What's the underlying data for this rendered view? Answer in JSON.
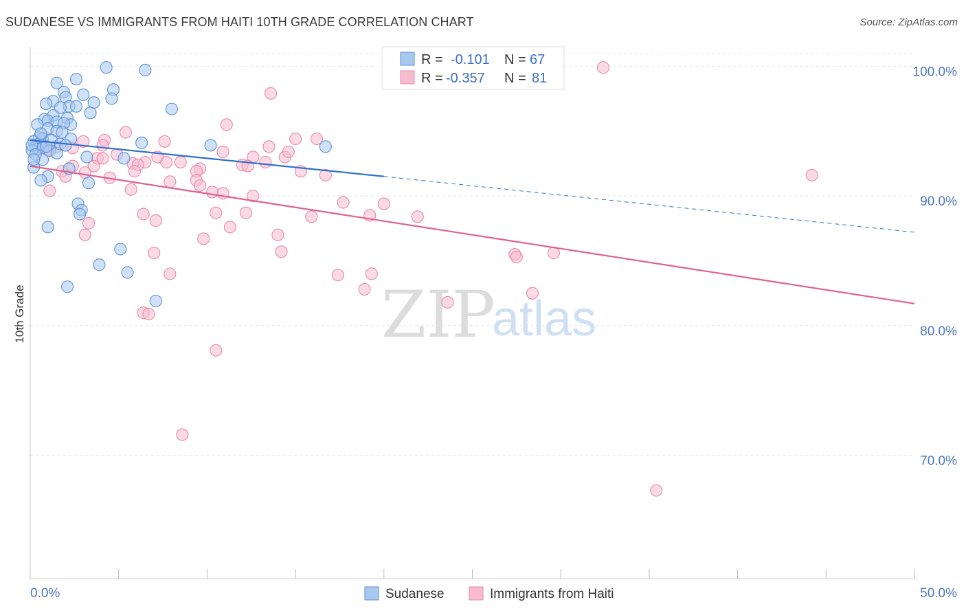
{
  "title": "SUDANESE VS IMMIGRANTS FROM HAITI 10TH GRADE CORRELATION CHART",
  "source": "Source: ZipAtlas.com",
  "watermark": {
    "zip": "ZIP",
    "atlas": "atlas"
  },
  "legend_top": {
    "rows": [
      {
        "r_label": "R =",
        "r_value": "-0.101",
        "n_label": "N =",
        "n_value": "67"
      },
      {
        "r_label": "R =",
        "r_value": "-0.357",
        "n_label": "N =",
        "n_value": "81"
      }
    ]
  },
  "legend_bottom": {
    "items": [
      "Sudanese",
      "Immigrants from Haiti"
    ]
  },
  "colors": {
    "blue_fill": "#a8c8f0",
    "blue_stroke": "#5b8fd6",
    "blue_line": "#2f6fd0",
    "pink_fill": "#f7bcd0",
    "pink_stroke": "#e889a8",
    "pink_line": "#e0608e",
    "tick_text": "#4a78c2"
  },
  "chart_data": {
    "type": "scatter",
    "title": "SUDANESE VS IMMIGRANTS FROM HAITI 10TH GRADE CORRELATION CHART",
    "xlabel": "",
    "ylabel": "10th Grade",
    "xlim": [
      0,
      50
    ],
    "ylim": [
      60.5,
      101.5
    ],
    "x_tick_labels": [
      "0.0%",
      "50.0%"
    ],
    "y_ticks": [
      {
        "value": 100,
        "label": "100.0%"
      },
      {
        "value": 90,
        "label": "90.0%"
      },
      {
        "value": 80,
        "label": "80.0%"
      },
      {
        "value": 70,
        "label": "70.0%"
      }
    ],
    "grid": true,
    "series": [
      {
        "name": "Sudanese",
        "r": -0.101,
        "n": 67,
        "trend": {
          "x0": 0,
          "y0": 94.3,
          "x_solid_end": 20,
          "y_solid_end": 91.5,
          "x1": 50,
          "y1": 87.2
        },
        "points": [
          [
            4.3,
            99.9
          ],
          [
            6.5,
            99.7
          ],
          [
            2.6,
            99.0
          ],
          [
            1.5,
            98.7
          ],
          [
            4.7,
            98.2
          ],
          [
            1.9,
            98.0
          ],
          [
            3.0,
            97.8
          ],
          [
            2.0,
            97.6
          ],
          [
            1.3,
            97.3
          ],
          [
            0.9,
            97.1
          ],
          [
            3.6,
            97.2
          ],
          [
            4.6,
            97.5
          ],
          [
            2.2,
            96.9
          ],
          [
            8.0,
            96.7
          ],
          [
            1.7,
            96.8
          ],
          [
            2.6,
            96.9
          ],
          [
            3.4,
            96.4
          ],
          [
            1.3,
            96.2
          ],
          [
            0.8,
            95.9
          ],
          [
            1.0,
            95.8
          ],
          [
            2.1,
            96.0
          ],
          [
            1.5,
            95.7
          ],
          [
            0.4,
            95.5
          ],
          [
            2.3,
            95.5
          ],
          [
            1.9,
            95.6
          ],
          [
            1.0,
            95.2
          ],
          [
            1.5,
            95.0
          ],
          [
            1.8,
            94.9
          ],
          [
            0.5,
            94.5
          ],
          [
            0.7,
            94.4
          ],
          [
            1.2,
            94.3
          ],
          [
            2.3,
            94.4
          ],
          [
            0.2,
            94.2
          ],
          [
            0.5,
            94.0
          ],
          [
            6.3,
            94.1
          ],
          [
            10.2,
            93.9
          ],
          [
            16.7,
            93.8
          ],
          [
            0.3,
            93.8
          ],
          [
            0.4,
            93.6
          ],
          [
            0.7,
            93.7
          ],
          [
            1.1,
            93.5
          ],
          [
            1.5,
            93.3
          ],
          [
            0.1,
            93.5
          ],
          [
            3.2,
            93.0
          ],
          [
            5.3,
            92.9
          ],
          [
            0.7,
            92.8
          ],
          [
            0.2,
            92.2
          ],
          [
            2.2,
            92.1
          ],
          [
            1.0,
            91.5
          ],
          [
            0.6,
            91.2
          ],
          [
            3.3,
            91.0
          ],
          [
            2.7,
            89.4
          ],
          [
            2.9,
            88.9
          ],
          [
            2.8,
            88.6
          ],
          [
            1.0,
            87.6
          ],
          [
            5.1,
            85.9
          ],
          [
            3.9,
            84.7
          ],
          [
            5.5,
            84.1
          ],
          [
            2.1,
            83.0
          ],
          [
            7.1,
            81.9
          ],
          [
            0.1,
            93.9
          ],
          [
            0.3,
            93.2
          ],
          [
            0.9,
            93.8
          ],
          [
            1.7,
            94.0
          ],
          [
            2.0,
            93.9
          ],
          [
            0.6,
            94.8
          ],
          [
            0.2,
            92.8
          ]
        ]
      },
      {
        "name": "Immigrants from Haiti",
        "r": -0.357,
        "n": 81,
        "trend": {
          "x0": 0,
          "y0": 92.3,
          "x1": 50,
          "y1": 81.7
        },
        "points": [
          [
            32.4,
            99.9
          ],
          [
            13.6,
            97.9
          ],
          [
            11.1,
            95.5
          ],
          [
            5.4,
            94.9
          ],
          [
            15.0,
            94.4
          ],
          [
            4.2,
            94.3
          ],
          [
            7.6,
            94.2
          ],
          [
            3.0,
            94.2
          ],
          [
            4.1,
            93.9
          ],
          [
            13.5,
            93.8
          ],
          [
            2.4,
            93.7
          ],
          [
            1.5,
            93.8
          ],
          [
            0.6,
            93.8
          ],
          [
            1.0,
            93.5
          ],
          [
            10.9,
            93.4
          ],
          [
            4.9,
            93.2
          ],
          [
            7.2,
            93.0
          ],
          [
            14.4,
            93.0
          ],
          [
            12.6,
            93.0
          ],
          [
            3.8,
            92.9
          ],
          [
            4.1,
            92.9
          ],
          [
            8.5,
            92.6
          ],
          [
            7.7,
            92.6
          ],
          [
            6.5,
            92.6
          ],
          [
            5.8,
            92.5
          ],
          [
            6.1,
            92.4
          ],
          [
            12.0,
            92.4
          ],
          [
            12.3,
            92.3
          ],
          [
            3.6,
            92.3
          ],
          [
            2.4,
            92.3
          ],
          [
            9.6,
            92.1
          ],
          [
            9.4,
            91.9
          ],
          [
            15.3,
            91.9
          ],
          [
            1.8,
            91.9
          ],
          [
            3.1,
            91.8
          ],
          [
            2.0,
            91.5
          ],
          [
            4.5,
            91.4
          ],
          [
            9.4,
            91.2
          ],
          [
            7.9,
            91.1
          ],
          [
            9.6,
            90.8
          ],
          [
            44.2,
            91.6
          ],
          [
            16.7,
            91.6
          ],
          [
            1.1,
            90.4
          ],
          [
            5.7,
            90.5
          ],
          [
            10.3,
            90.3
          ],
          [
            10.9,
            90.2
          ],
          [
            12.6,
            90.0
          ],
          [
            17.7,
            89.5
          ],
          [
            20.0,
            89.4
          ],
          [
            12.2,
            88.7
          ],
          [
            6.4,
            88.6
          ],
          [
            10.5,
            88.7
          ],
          [
            15.9,
            88.4
          ],
          [
            21.9,
            88.4
          ],
          [
            19.2,
            88.5
          ],
          [
            7.1,
            88.1
          ],
          [
            3.3,
            87.9
          ],
          [
            11.3,
            87.6
          ],
          [
            3.1,
            87.0
          ],
          [
            14.0,
            87.0
          ],
          [
            9.8,
            86.7
          ],
          [
            14.2,
            85.7
          ],
          [
            7.0,
            85.6
          ],
          [
            27.4,
            85.5
          ],
          [
            27.5,
            85.3
          ],
          [
            29.6,
            85.6
          ],
          [
            7.9,
            84.0
          ],
          [
            17.4,
            83.9
          ],
          [
            19.3,
            84.0
          ],
          [
            18.9,
            82.8
          ],
          [
            28.4,
            82.5
          ],
          [
            23.6,
            81.8
          ],
          [
            6.4,
            81.0
          ],
          [
            6.7,
            80.9
          ],
          [
            10.5,
            78.1
          ],
          [
            8.6,
            71.6
          ],
          [
            35.4,
            67.3
          ],
          [
            16.2,
            94.4
          ],
          [
            5.9,
            91.9
          ],
          [
            14.6,
            93.4
          ],
          [
            13.3,
            92.6
          ]
        ]
      }
    ]
  }
}
